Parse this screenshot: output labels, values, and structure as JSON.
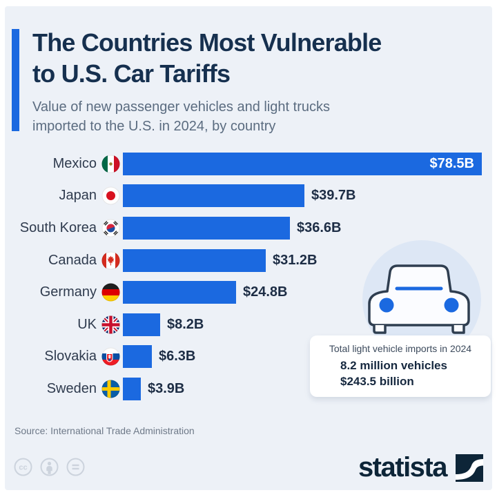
{
  "header": {
    "title_line1": "The Countries Most Vulnerable",
    "title_line2": "to U.S. Car Tariffs",
    "subtitle_line1": "Value of new passenger vehicles and light trucks",
    "subtitle_line2": "imported to the U.S. in 2024, by country"
  },
  "chart_data": {
    "type": "bar",
    "orientation": "horizontal",
    "title": "The Countries Most Vulnerable to U.S. Car Tariffs",
    "unit": "USD billions",
    "categories": [
      "Mexico",
      "Japan",
      "South Korea",
      "Canada",
      "Germany",
      "UK",
      "Slovakia",
      "Sweden"
    ],
    "values": [
      78.5,
      39.7,
      36.6,
      31.2,
      24.8,
      8.2,
      6.3,
      3.9
    ],
    "value_labels": [
      "$78.5B",
      "$39.7B",
      "$36.6B",
      "$31.2B",
      "$24.8B",
      "$8.2B",
      "$6.3B",
      "$3.9B"
    ],
    "flags": [
      "mx",
      "jp",
      "kr",
      "ca",
      "de",
      "gb",
      "sk",
      "se"
    ],
    "xlim": [
      0,
      78.5
    ],
    "grid": false,
    "legend": false,
    "bar_color": "#1b69e0"
  },
  "callout": {
    "heading": "Total light vehicle imports in 2024",
    "stat_line1": "8.2 million vehicles",
    "stat_line2": "$243.5 billion"
  },
  "footer": {
    "source": "Source: International Trade Administration",
    "brand": "statista",
    "license_icons": [
      "cc",
      "by",
      "nd"
    ]
  },
  "colors": {
    "bar": "#1b69e0",
    "accent": "#1b69e0",
    "panel_background": "#edf1f7",
    "title_text": "#16304f",
    "subtitle_text": "#5b6c80",
    "car_circle": "#dde7f5",
    "brand_navy": "#0d2538"
  }
}
